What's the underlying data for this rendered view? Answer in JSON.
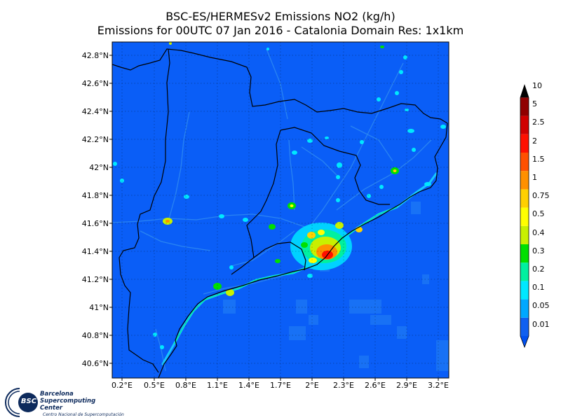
{
  "header": {
    "title_line1": "BSC-ES/HERMESv2 Emissions NO2 (kg/h)",
    "title_line2": "Emissions for 00UTC 07 Jan 2016 - Catalonia Domain Res: 1x1km"
  },
  "map": {
    "lon_ticks": [
      "0.2°E",
      "0.5°E",
      "0.8°E",
      "1.1°E",
      "1.4°E",
      "1.7°E",
      "2°E",
      "2.3°E",
      "2.6°E",
      "2.9°E",
      "3.2°E"
    ],
    "lat_ticks": [
      "42.8°N",
      "42.6°N",
      "42.4°N",
      "42.2°N",
      "42°N",
      "41.8°N",
      "41.6°N",
      "41.4°N",
      "41.2°N",
      "41°N",
      "40.8°N",
      "40.6°N"
    ],
    "background_color": "#0a5ef7",
    "land_boundary_color": "#000000"
  },
  "colorbar": {
    "labels": [
      "10",
      "5",
      "2.5",
      "2",
      "1.5",
      "1",
      "0.75",
      "0.5",
      "0.4",
      "0.3",
      "0.2",
      "0.1",
      "0.05",
      "0.01"
    ],
    "colors": [
      "#1060f0",
      "#00a8ff",
      "#00e8ff",
      "#00f0a0",
      "#00e000",
      "#c8f000",
      "#ffff00",
      "#ffd000",
      "#ff9000",
      "#ff5000",
      "#ff1000",
      "#d00000",
      "#900000",
      "#000000"
    ]
  },
  "logo": {
    "badge": "BSC",
    "name_line1": "Barcelona",
    "name_line2": "Supercomputing",
    "name_line3": "Center",
    "subtitle": "Centro Nacional de Supercomputación"
  }
}
